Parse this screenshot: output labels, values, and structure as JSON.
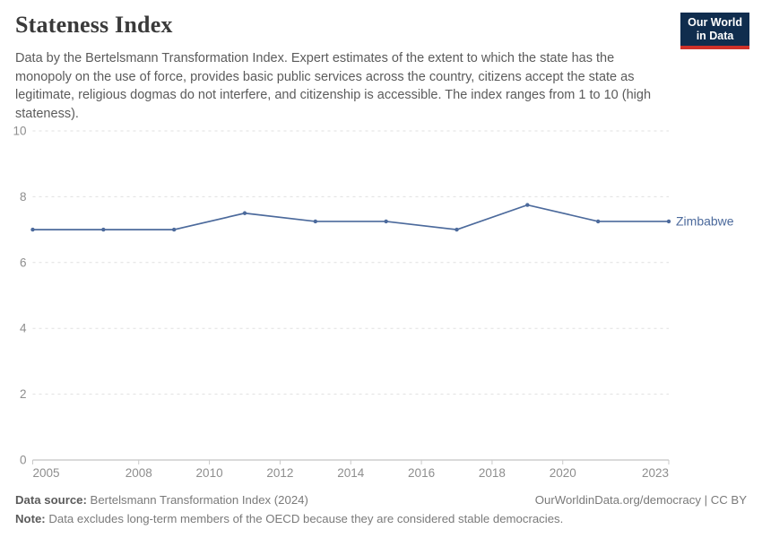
{
  "header": {
    "title": "Stateness Index",
    "subtitle": "Data by the Bertelsmann Transformation Index. Expert estimates of the extent to which the state has the monopoly on the use of force, provides basic public services across the country, citizens accept the state as legitimate, religious dogmas do not interfere, and citizenship is accessible. The index ranges from 1 to 10 (high stateness).",
    "logo": {
      "line1": "Our World",
      "line2": "in Data",
      "bg_color": "#102d4e",
      "accent_color": "#cf3129"
    }
  },
  "chart_data": {
    "type": "line",
    "title": "Stateness Index",
    "x": [
      2005,
      2007,
      2009,
      2011,
      2013,
      2015,
      2017,
      2019,
      2021,
      2023
    ],
    "series": [
      {
        "name": "Zimbabwe",
        "values": [
          7,
          7,
          7,
          7.5,
          7.25,
          7.25,
          7,
          7.75,
          7.25,
          7.25
        ],
        "color": "#4c6a9c"
      }
    ],
    "ylim": [
      0,
      10
    ],
    "yticks": [
      0,
      2,
      4,
      6,
      8,
      10
    ],
    "xticks": [
      2005,
      2008,
      2010,
      2012,
      2014,
      2016,
      2018,
      2020,
      2023
    ],
    "grid": "horizontal dashed",
    "legend_position": "line-end label"
  },
  "footer": {
    "source_label": "Data source:",
    "source_text": " Bertelsmann Transformation Index (2024)",
    "link_text": "OurWorldinData.org/democracy | CC BY",
    "note_label": "Note:",
    "note_text": " Data excludes long-term members of the OECD because they are considered stable democracies."
  }
}
